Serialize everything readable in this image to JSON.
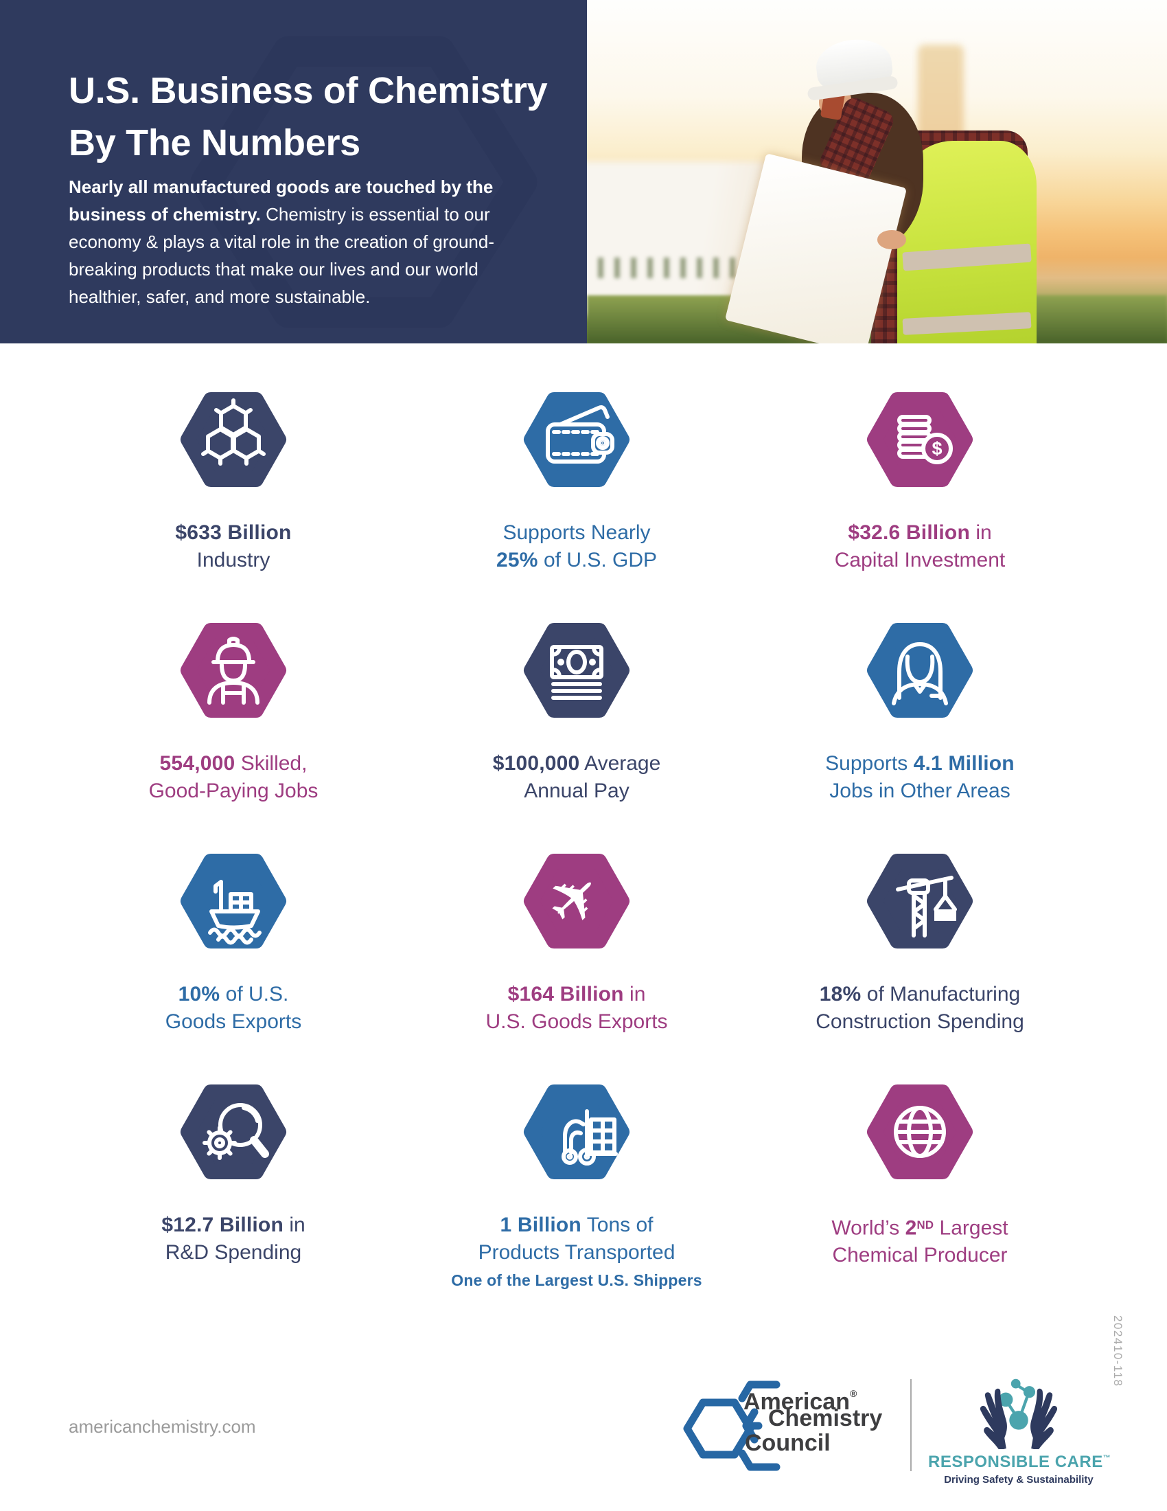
{
  "colors": {
    "navy_header": "#2F3A5E",
    "navy": "#3B4569",
    "blue": "#2E6CA6",
    "magenta": "#9E3D81",
    "white": "#FFFFFF",
    "footer_gray": "#9B9B9B",
    "acc_blue": "#2767A4",
    "acc_dark": "#3E3E40",
    "rc_teal": "#4BA4AD",
    "rc_navy": "#2E3A5E",
    "code_gray": "#ABABAB",
    "deco_navy": "#2A3459"
  },
  "header": {
    "title_line1": "U.S. Business of Chemistry",
    "title_line2": "By The Numbers",
    "intro_bold": "Nearly all manufactured goods are touched by the business of chemistry.",
    "intro_regular": "Chemistry is essential to our economy & plays a vital role in the creation of ground-breaking products that make our lives and our world healthier, safer, and more sustainable."
  },
  "stats": [
    {
      "key": "industry",
      "icon": "molecule-icon",
      "color": "navy",
      "lines": [
        [
          {
            "t": "$633 Billion",
            "b": true
          }
        ],
        [
          {
            "t": "Industry"
          }
        ]
      ]
    },
    {
      "key": "gdp",
      "icon": "wallet-icon",
      "color": "blue",
      "lines": [
        [
          {
            "t": "Supports Nearly"
          }
        ],
        [
          {
            "t": "25%",
            "b": true
          },
          {
            "t": " of U.S. GDP"
          }
        ]
      ]
    },
    {
      "key": "capital-investment",
      "icon": "coins-icon",
      "color": "magenta",
      "lines": [
        [
          {
            "t": "$32.6 Billion",
            "b": true
          },
          {
            "t": " in"
          }
        ],
        [
          {
            "t": "Capital Investment"
          }
        ]
      ]
    },
    {
      "key": "skilled-jobs",
      "icon": "worker-icon",
      "color": "magenta",
      "lines": [
        [
          {
            "t": "554,000",
            "b": true
          },
          {
            "t": " Skilled,"
          }
        ],
        [
          {
            "t": "Good-Paying Jobs"
          }
        ]
      ]
    },
    {
      "key": "annual-pay",
      "icon": "money-icon",
      "color": "navy",
      "lines": [
        [
          {
            "t": "$100,000",
            "b": true
          },
          {
            "t": " Average"
          }
        ],
        [
          {
            "t": "Annual Pay"
          }
        ]
      ]
    },
    {
      "key": "other-jobs",
      "icon": "person-icon",
      "color": "blue",
      "lines": [
        [
          {
            "t": "Supports "
          },
          {
            "t": "4.1 Million",
            "b": true
          }
        ],
        [
          {
            "t": "Jobs in Other Areas"
          }
        ]
      ]
    },
    {
      "key": "goods-exports-share",
      "icon": "ship-icon",
      "color": "blue",
      "lines": [
        [
          {
            "t": "10%",
            "b": true
          },
          {
            "t": " of U.S."
          }
        ],
        [
          {
            "t": "Goods Exports"
          }
        ]
      ]
    },
    {
      "key": "goods-exports-value",
      "icon": "plane-icon",
      "color": "magenta",
      "lines": [
        [
          {
            "t": "$164 Billion",
            "b": true
          },
          {
            "t": " in"
          }
        ],
        [
          {
            "t": "U.S. Goods Exports"
          }
        ]
      ]
    },
    {
      "key": "construction-spending",
      "icon": "crane-icon",
      "color": "navy",
      "lines": [
        [
          {
            "t": "18%",
            "b": true
          },
          {
            "t": " of Manufacturing"
          }
        ],
        [
          {
            "t": "Construction Spending"
          }
        ]
      ]
    },
    {
      "key": "rnd-spending",
      "icon": "research-icon",
      "color": "navy",
      "lines": [
        [
          {
            "t": "$12.7 Billion",
            "b": true
          },
          {
            "t": " in"
          }
        ],
        [
          {
            "t": "R&D Spending"
          }
        ]
      ]
    },
    {
      "key": "products-transported",
      "icon": "forklift-icon",
      "color": "blue",
      "lines": [
        [
          {
            "t": "1 Billion",
            "b": true
          },
          {
            "t": " Tons of"
          }
        ],
        [
          {
            "t": "Products Transported"
          }
        ]
      ],
      "subline": [
        {
          "t": "One of the Largest U.S. Shippers",
          "b": true
        }
      ]
    },
    {
      "key": "world-producer",
      "icon": "globe-icon",
      "color": "magenta",
      "lines": [
        [
          {
            "t": "World’s "
          },
          {
            "t": "2",
            "b": true
          },
          {
            "t": "ND",
            "b": true,
            "sup": true
          },
          {
            "t": " Largest"
          }
        ],
        [
          {
            "t": "Chemical Producer"
          }
        ]
      ]
    }
  ],
  "footer": {
    "website": "americanchemistry.com",
    "doc_code": "202410-118",
    "acc": {
      "name_line1": "American",
      "trademark": "®",
      "name_line2": "Chemistry",
      "name_line3": "Council"
    },
    "responsible_care": {
      "title": "RESPONSIBLE CARE",
      "trademark": "™",
      "tagline": "Driving Safety & Sustainability"
    }
  }
}
